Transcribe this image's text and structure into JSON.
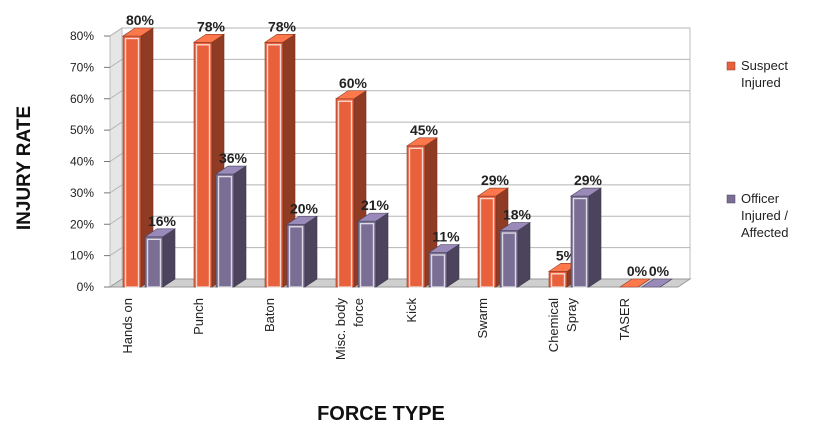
{
  "chart_data": {
    "type": "bar",
    "title": "",
    "xlabel": "FORCE TYPE",
    "ylabel": "INJURY RATE",
    "ylim": [
      0,
      80
    ],
    "yticks": [
      "0%",
      "10%",
      "20%",
      "30%",
      "40%",
      "50%",
      "60%",
      "70%",
      "80%"
    ],
    "categories": [
      [
        "Hands on"
      ],
      [
        "Punch"
      ],
      [
        "Baton"
      ],
      [
        "Misc. body",
        "force"
      ],
      [
        "Kick"
      ],
      [
        "Swarm"
      ],
      [
        "Chemical",
        "Spray"
      ],
      [
        "TASER"
      ]
    ],
    "series": [
      {
        "name": "Suspect Injured",
        "values": [
          80,
          78,
          78,
          60,
          45,
          29,
          5,
          0
        ],
        "labels": [
          "80%",
          "78%",
          "78%",
          "60%",
          "45%",
          "29%",
          "5%",
          "0%"
        ],
        "color": "#e8603c"
      },
      {
        "name": "Officer Injured / Affected",
        "values": [
          16,
          36,
          20,
          21,
          11,
          18,
          29,
          0
        ],
        "labels": [
          "16%",
          "36%",
          "20%",
          "21%",
          "11%",
          "18%",
          "29%",
          "0%"
        ],
        "color": "#7a6e94"
      }
    ],
    "grid": true,
    "legend_position": "right",
    "style": "3d-bar"
  }
}
